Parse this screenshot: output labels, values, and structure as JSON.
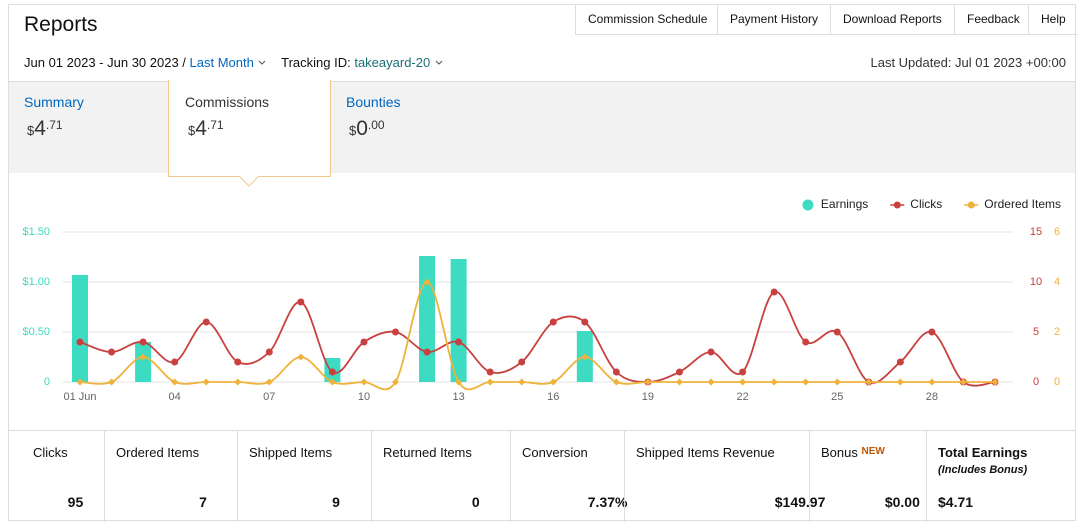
{
  "header": {
    "title": "Reports",
    "nav": [
      "Commission Schedule",
      "Payment History",
      "Download Reports",
      "Feedback",
      "Help"
    ]
  },
  "filters": {
    "date_range": "Jun 01 2023 - Jun 30 2023 /",
    "period": "Last Month",
    "tracking_label": "Tracking ID:",
    "tracking_id": "takeayard-20",
    "last_updated": "Last Updated: Jul 01 2023 +00:00"
  },
  "tabs": [
    {
      "label": "Summary",
      "currency": "$",
      "whole": "4",
      "cents": ".71"
    },
    {
      "label": "Commissions",
      "currency": "$",
      "whole": "4",
      "cents": ".71"
    },
    {
      "label": "Bounties",
      "currency": "$",
      "whole": "0",
      "cents": ".00"
    }
  ],
  "chart_data": {
    "type": "bar",
    "legend": "top-right",
    "grid": true,
    "categories": [
      "01 Jun",
      null,
      null,
      "04",
      null,
      null,
      "07",
      null,
      null,
      "10",
      null,
      null,
      "13",
      null,
      null,
      "16",
      null,
      null,
      "19",
      null,
      null,
      "22",
      null,
      null,
      "25",
      null,
      null,
      "28",
      null,
      null
    ],
    "series": [
      {
        "name": "Earnings",
        "type": "bar",
        "color": "#3ddbc1",
        "values": [
          1.07,
          0,
          0.4,
          0,
          0,
          0,
          0,
          0,
          0.24,
          0,
          0,
          1.26,
          1.23,
          0,
          0,
          0,
          0.51,
          0,
          0,
          0,
          0,
          0,
          0,
          0,
          0,
          0,
          0,
          0,
          0,
          0
        ]
      },
      {
        "name": "Clicks",
        "type": "line",
        "axis": "y2",
        "color": "#c8403f",
        "values": [
          4,
          3,
          4,
          2,
          6,
          2,
          3,
          8,
          1,
          4,
          5,
          3,
          4,
          1,
          2,
          6,
          6,
          1,
          0,
          1,
          3,
          1,
          9,
          4,
          5,
          0,
          2,
          5,
          0,
          0
        ]
      },
      {
        "name": "Ordered Items",
        "type": "line",
        "axis": "y3",
        "color": "#efb23a",
        "values": [
          0,
          0,
          1,
          0,
          0,
          0,
          0,
          1,
          0,
          0,
          0,
          4,
          0,
          0,
          0,
          0,
          1,
          0,
          0,
          0,
          0,
          0,
          0,
          0,
          0,
          0,
          0,
          0,
          0,
          0
        ]
      }
    ],
    "ylim": [
      0,
      1.5
    ],
    "yticks": [
      0,
      {
        "value": 0.5,
        "label": "$0.50"
      },
      {
        "value": 1,
        "label": "$1.00"
      },
      {
        "value": 1.5,
        "label": "$1.50"
      }
    ],
    "y2lim": [
      0,
      15
    ],
    "y2ticks": [
      0,
      5,
      10,
      15
    ],
    "y3lim": [
      0,
      6
    ],
    "y3ticks": [
      0,
      2,
      4,
      6
    ]
  },
  "stats": [
    {
      "label": "Clicks",
      "value": "95"
    },
    {
      "label": "Ordered Items",
      "value": "7"
    },
    {
      "label": "Shipped Items",
      "value": "9"
    },
    {
      "label": "Returned Items",
      "value": "0"
    },
    {
      "label": "Conversion",
      "value": "7.37%"
    },
    {
      "label": "Shipped Items Revenue",
      "value": "$149.97"
    },
    {
      "label": "Bonus",
      "badge": "NEW",
      "value": "$0.00"
    },
    {
      "label": "Total Earnings",
      "note": "(Includes Bonus)",
      "value": "$4.71"
    }
  ]
}
